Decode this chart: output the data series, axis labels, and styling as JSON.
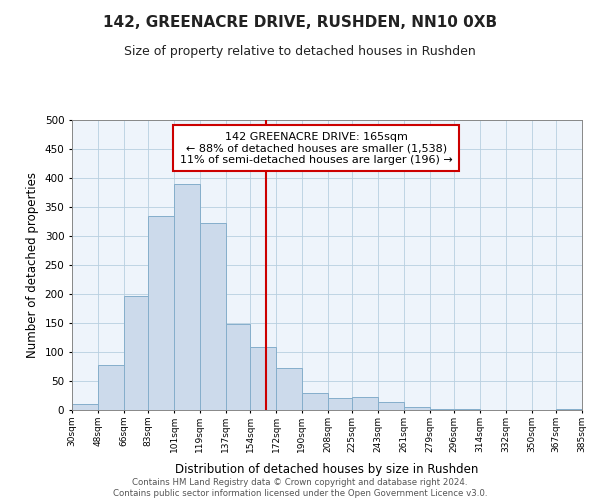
{
  "title": "142, GREENACRE DRIVE, RUSHDEN, NN10 0XB",
  "subtitle": "Size of property relative to detached houses in Rushden",
  "xlabel": "Distribution of detached houses by size in Rushden",
  "ylabel": "Number of detached properties",
  "bar_color": "#ccdaeb",
  "bar_edge_color": "#85aecb",
  "vline_x": 165,
  "vline_color": "#cc0000",
  "annotation_title": "142 GREENACRE DRIVE: 165sqm",
  "annotation_line1": "← 88% of detached houses are smaller (1,538)",
  "annotation_line2": "11% of semi-detached houses are larger (196) →",
  "annotation_box_color": "#ffffff",
  "annotation_box_edge": "#cc0000",
  "bin_edges": [
    30,
    48,
    66,
    83,
    101,
    119,
    137,
    154,
    172,
    190,
    208,
    225,
    243,
    261,
    279,
    296,
    314,
    332,
    350,
    367,
    385
  ],
  "bar_heights": [
    10,
    78,
    197,
    335,
    390,
    323,
    148,
    109,
    73,
    30,
    20,
    22,
    14,
    5,
    2,
    1,
    0,
    0,
    0,
    1
  ],
  "ylim": [
    0,
    500
  ],
  "yticks": [
    0,
    50,
    100,
    150,
    200,
    250,
    300,
    350,
    400,
    450,
    500
  ],
  "xlim": [
    30,
    385
  ],
  "footer_line1": "Contains HM Land Registry data © Crown copyright and database right 2024.",
  "footer_line2": "Contains public sector information licensed under the Open Government Licence v3.0.",
  "bg_color": "#eef4fb"
}
